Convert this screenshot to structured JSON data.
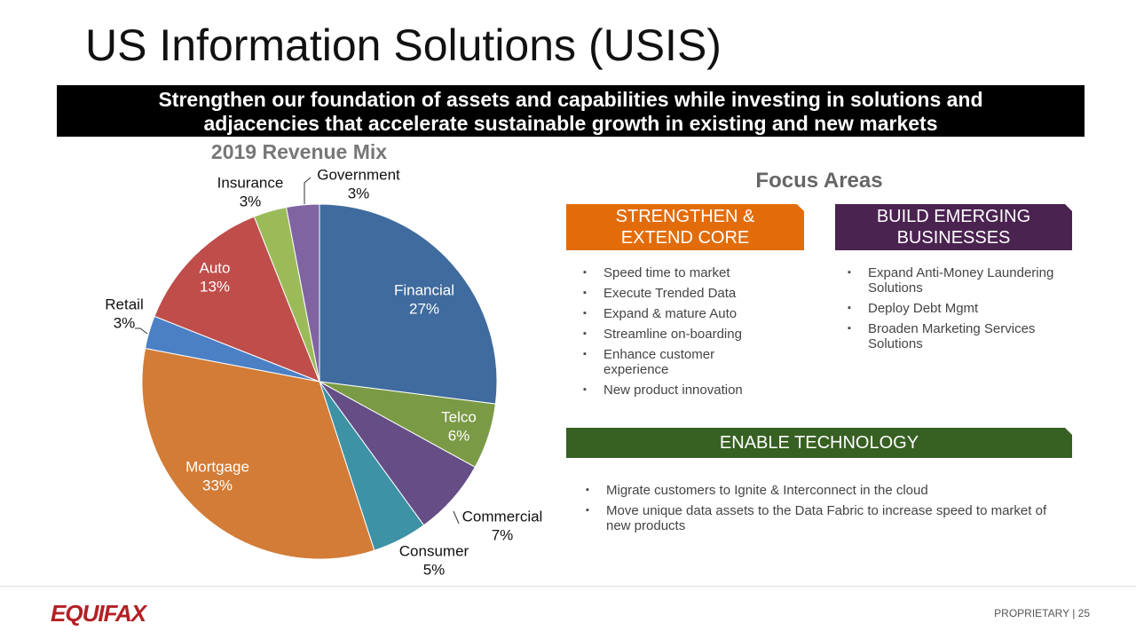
{
  "title": "US Information Solutions (USIS)",
  "banner": "Strengthen our foundation of assets and capabilities while investing in solutions and adjacencies that accelerate sustainable growth in existing and new markets",
  "chart_data": {
    "type": "pie",
    "title": "2019 Revenue Mix",
    "categories": [
      "Financial",
      "Telco",
      "Commercial",
      "Consumer",
      "Mortgage",
      "Retail",
      "Auto",
      "Insurance",
      "Government"
    ],
    "values": [
      27,
      6,
      7,
      5,
      33,
      3,
      13,
      3,
      3
    ],
    "value_labels": [
      "27%",
      "6%",
      "7%",
      "5%",
      "33%",
      "3%",
      "13%",
      "3%",
      "3%"
    ],
    "colors": [
      "#3f6b9e",
      "#7a9a45",
      "#654d86",
      "#3d92a6",
      "#d27c37",
      "#4b80c5",
      "#bf4d4a",
      "#9bbb59",
      "#8064a2"
    ]
  },
  "focus": {
    "title": "Focus Areas",
    "panels": [
      {
        "title": "STRENGTHEN & EXTEND CORE",
        "color": "#e36c0a",
        "items": [
          "Speed time to market",
          "Execute Trended Data",
          "Expand & mature Auto",
          "Streamline on-boarding",
          "Enhance customer experience",
          "New product innovation"
        ]
      },
      {
        "title": "BUILD EMERGING BUSINESSES",
        "color": "#4a2350",
        "items": [
          "Expand Anti-Money Laundering Solutions",
          "Deploy Debt Mgmt",
          "Broaden Marketing Services Solutions"
        ]
      },
      {
        "title": "ENABLE TECHNOLOGY",
        "color": "#376023",
        "items": [
          "Migrate customers to Ignite & Interconnect in the cloud",
          "Move unique data assets to the Data Fabric to increase speed to market of new products"
        ]
      }
    ]
  },
  "footer": {
    "logo": "EQUIFAX",
    "note": "PROPRIETARY | 25"
  }
}
